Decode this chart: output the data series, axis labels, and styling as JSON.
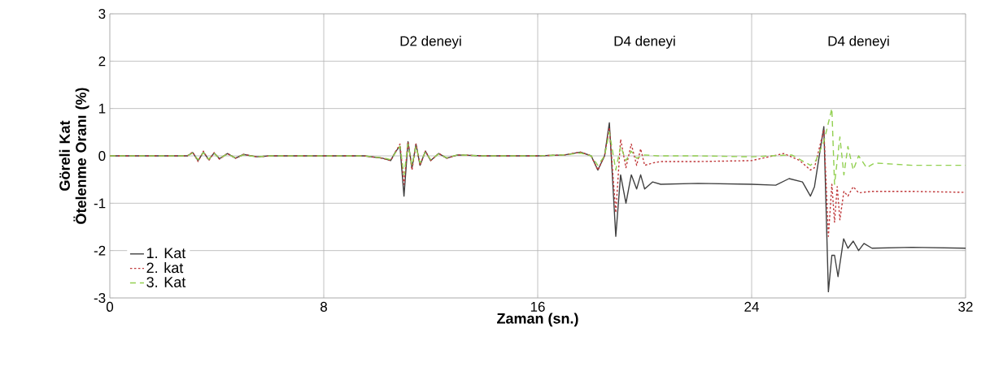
{
  "chart_data": {
    "type": "line",
    "xlabel": "Zaman (sn.)",
    "ylabel": "Göreli Kat Ötelenme Oranı (%)",
    "xlim": [
      0,
      32
    ],
    "ylim": [
      -3,
      3
    ],
    "xticks": [
      0,
      8,
      16,
      24,
      32
    ],
    "yticks": [
      -3,
      -2,
      -1,
      0,
      1,
      2,
      3
    ],
    "grid": true,
    "legend": "bottom left",
    "annotations": [
      "D2 deneyi",
      "D4 deneyi",
      "D4 deneyi"
    ],
    "series": [
      {
        "name": "1. Kat",
        "color": "#404040",
        "line_style": "solid",
        "x": [
          0,
          2.9,
          3.1,
          3.3,
          3.5,
          3.7,
          3.9,
          4.1,
          4.4,
          4.7,
          5.0,
          5.5,
          6,
          8,
          9.5,
          10.2,
          10.5,
          10.7,
          10.85,
          11.0,
          11.15,
          11.3,
          11.45,
          11.6,
          11.8,
          12.0,
          12.3,
          12.6,
          13,
          14,
          16,
          17,
          17.6,
          18.0,
          18.25,
          18.5,
          18.68,
          18.92,
          19.1,
          19.3,
          19.5,
          19.7,
          19.85,
          20.0,
          20.3,
          20.6,
          22,
          24,
          24.9,
          25.4,
          25.9,
          26.2,
          26.35,
          26.7,
          26.87,
          27.0,
          27.1,
          27.23,
          27.44,
          27.6,
          27.8,
          28.0,
          28.2,
          28.5,
          30,
          32
        ],
        "values": [
          0,
          0,
          0.07,
          -0.1,
          0.08,
          -0.08,
          0.06,
          -0.06,
          0.05,
          -0.05,
          0.03,
          -0.02,
          0,
          0,
          0,
          -0.05,
          -0.1,
          0.1,
          0.2,
          -0.85,
          0.3,
          -0.25,
          0.25,
          -0.2,
          0.1,
          -0.1,
          0.05,
          -0.05,
          0.02,
          0,
          0,
          0.02,
          0.08,
          0,
          -0.3,
          0,
          0.7,
          -1.7,
          -0.4,
          -1.0,
          -0.4,
          -0.7,
          -0.4,
          -0.7,
          -0.55,
          -0.6,
          -0.58,
          -0.6,
          -0.62,
          -0.48,
          -0.55,
          -0.85,
          -0.65,
          0.62,
          -2.87,
          -2.1,
          -2.1,
          -2.55,
          -1.75,
          -1.95,
          -1.8,
          -2.0,
          -1.85,
          -1.95,
          -1.93,
          -1.95
        ]
      },
      {
        "name": "2. kat",
        "color": "#c0393b",
        "line_style": "dotted",
        "x": [
          0,
          2.9,
          3.1,
          3.3,
          3.5,
          3.7,
          3.9,
          4.1,
          4.4,
          4.7,
          5.0,
          5.5,
          6,
          8,
          9.5,
          10.2,
          10.5,
          10.7,
          10.85,
          11.0,
          11.15,
          11.3,
          11.45,
          11.6,
          11.8,
          12.0,
          12.3,
          12.6,
          13,
          14,
          16,
          17,
          17.6,
          18.0,
          18.25,
          18.5,
          18.68,
          18.92,
          19.1,
          19.3,
          19.5,
          19.7,
          19.85,
          20.0,
          20.3,
          20.6,
          22,
          24,
          25.2,
          25.8,
          26.2,
          26.35,
          26.7,
          26.87,
          27.0,
          27.1,
          27.2,
          27.3,
          27.45,
          27.6,
          27.8,
          28.0,
          28.5,
          30,
          32
        ],
        "values": [
          0,
          0,
          0.08,
          -0.12,
          0.1,
          -0.1,
          0.07,
          -0.07,
          0.05,
          -0.05,
          0.03,
          -0.02,
          0,
          0,
          0,
          -0.05,
          -0.1,
          0.1,
          0.25,
          -0.6,
          0.3,
          -0.3,
          0.25,
          -0.2,
          0.1,
          -0.1,
          0.05,
          -0.05,
          0.02,
          0,
          0,
          0.02,
          0.08,
          0,
          -0.3,
          0,
          0.6,
          -1.2,
          0.35,
          -0.25,
          0.25,
          -0.2,
          0.15,
          -0.2,
          -0.15,
          -0.12,
          -0.12,
          -0.1,
          0.05,
          -0.1,
          -0.3,
          -0.25,
          0.55,
          -1.7,
          -0.6,
          -1.4,
          -0.65,
          -1.35,
          -0.75,
          -0.85,
          -0.65,
          -0.78,
          -0.75,
          -0.75,
          -0.77
        ]
      },
      {
        "name": "3. Kat",
        "color": "#92d050",
        "line_style": "dashed",
        "x": [
          0,
          2.9,
          3.1,
          3.3,
          3.5,
          3.7,
          3.9,
          4.1,
          4.4,
          4.7,
          5.0,
          5.5,
          6,
          8,
          9.5,
          10.2,
          10.5,
          10.7,
          10.85,
          11.0,
          11.15,
          11.3,
          11.45,
          11.6,
          11.8,
          12.0,
          12.3,
          12.6,
          13,
          14,
          16,
          17,
          17.6,
          18.0,
          18.25,
          18.5,
          18.68,
          18.92,
          19.1,
          19.3,
          19.5,
          19.7,
          20.0,
          20.5,
          22,
          24,
          25.5,
          26.2,
          26.4,
          26.7,
          27.0,
          27.1,
          27.3,
          27.45,
          27.6,
          27.8,
          28.0,
          28.3,
          28.6,
          30,
          32
        ],
        "values": [
          0,
          0,
          0.06,
          -0.08,
          0.07,
          -0.07,
          0.05,
          -0.05,
          0.04,
          -0.04,
          0.02,
          -0.02,
          0,
          0,
          0,
          -0.04,
          -0.08,
          0.08,
          0.2,
          -0.4,
          0.25,
          -0.2,
          0.2,
          -0.15,
          0.08,
          -0.08,
          0.04,
          -0.04,
          0.02,
          0,
          0,
          0.02,
          0.06,
          0,
          -0.2,
          0,
          0.5,
          -0.3,
          0.2,
          -0.1,
          0.1,
          -0.05,
          0.02,
          0,
          0,
          -0.02,
          0.02,
          -0.2,
          -0.1,
          0.3,
          1.0,
          -0.6,
          0.4,
          -0.4,
          0.2,
          -0.3,
          0,
          -0.25,
          -0.15,
          -0.2,
          -0.2
        ]
      }
    ]
  }
}
